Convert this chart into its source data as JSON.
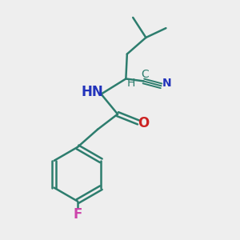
{
  "background_color": "#eeeeee",
  "bond_color": "#2d7d6e",
  "N_color": "#2233bb",
  "O_color": "#cc2222",
  "F_color": "#cc44aa",
  "H_color": "#2d7d6e",
  "C_color": "#2d7d6e",
  "figsize": [
    3.0,
    3.0
  ],
  "dpi": 100,
  "xlim": [
    0,
    10
  ],
  "ylim": [
    0,
    10
  ]
}
